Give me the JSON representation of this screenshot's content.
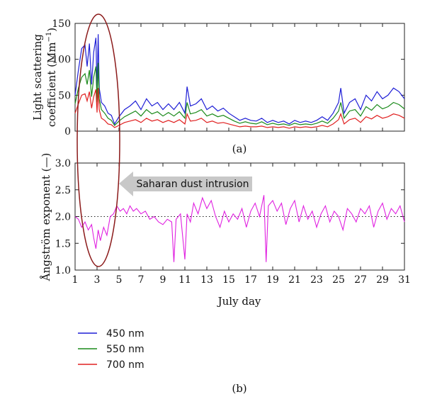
{
  "chart_data": [
    {
      "panel": "(a)",
      "type": "line",
      "ylabel_line1": "Light scattering",
      "ylabel_line2_prefix": "coefficient (Mm",
      "ylabel_line2_sup": "−1",
      "ylabel_line2_suffix": ")",
      "xlim": [
        1,
        31
      ],
      "ylim": [
        0,
        150
      ],
      "yticks": [
        0,
        50,
        100,
        150
      ],
      "grid": false,
      "series": [
        {
          "name": "450 nm",
          "color": "#1f1fd6",
          "x": [
            1,
            1.3,
            1.6,
            1.9,
            2.1,
            2.3,
            2.5,
            2.7,
            2.9,
            3.0,
            3.1,
            3.2,
            3.4,
            3.7,
            4.0,
            4.3,
            4.6,
            5,
            5.5,
            6,
            6.5,
            7,
            7.5,
            8,
            8.5,
            9,
            9.5,
            10,
            10.5,
            11,
            11.2,
            11.5,
            12,
            12.5,
            13,
            13.5,
            14,
            14.5,
            15,
            15.5,
            16,
            16.5,
            17,
            17.5,
            18,
            18.5,
            19,
            19.5,
            20,
            20.5,
            21,
            21.5,
            22,
            22.5,
            23,
            23.5,
            24,
            24.5,
            25,
            25.2,
            25.5,
            26,
            26.5,
            27,
            27.5,
            28,
            28.5,
            29,
            29.5,
            30,
            30.5,
            31
          ],
          "y": [
            50,
            85,
            115,
            120,
            90,
            122,
            65,
            110,
            130,
            55,
            135,
            60,
            40,
            35,
            25,
            22,
            10,
            20,
            30,
            35,
            42,
            30,
            45,
            35,
            40,
            30,
            38,
            30,
            40,
            25,
            62,
            35,
            38,
            45,
            30,
            35,
            28,
            32,
            25,
            20,
            15,
            18,
            15,
            14,
            18,
            12,
            15,
            12,
            14,
            10,
            15,
            12,
            14,
            12,
            15,
            20,
            15,
            25,
            40,
            60,
            25,
            40,
            45,
            30,
            50,
            42,
            55,
            45,
            50,
            60,
            55,
            45
          ]
        },
        {
          "name": "550 nm",
          "color": "#1a8a1a",
          "x": [
            1,
            1.3,
            1.6,
            1.9,
            2.1,
            2.3,
            2.5,
            2.7,
            2.9,
            3.0,
            3.1,
            3.2,
            3.4,
            3.7,
            4.0,
            4.3,
            4.6,
            5,
            5.5,
            6,
            6.5,
            7,
            7.5,
            8,
            8.5,
            9,
            9.5,
            10,
            10.5,
            11,
            11.2,
            11.5,
            12,
            12.5,
            13,
            13.5,
            14,
            14.5,
            15,
            15.5,
            16,
            16.5,
            17,
            17.5,
            18,
            18.5,
            19,
            19.5,
            20,
            20.5,
            21,
            21.5,
            22,
            22.5,
            23,
            23.5,
            24,
            24.5,
            25,
            25.2,
            25.5,
            26,
            26.5,
            27,
            27.5,
            28,
            28.5,
            29,
            29.5,
            30,
            30.5,
            31
          ],
          "y": [
            38,
            60,
            75,
            80,
            65,
            85,
            48,
            75,
            90,
            40,
            95,
            45,
            30,
            25,
            18,
            15,
            8,
            14,
            20,
            24,
            28,
            21,
            30,
            24,
            27,
            21,
            26,
            21,
            27,
            18,
            40,
            24,
            26,
            30,
            21,
            24,
            20,
            22,
            18,
            14,
            11,
            13,
            11,
            10,
            13,
            9,
            11,
            9,
            10,
            8,
            11,
            9,
            10,
            9,
            11,
            14,
            11,
            18,
            28,
            40,
            18,
            28,
            30,
            21,
            34,
            29,
            37,
            31,
            34,
            40,
            37,
            31
          ]
        },
        {
          "name": "700 nm",
          "color": "#e02020",
          "x": [
            1,
            1.3,
            1.6,
            1.9,
            2.1,
            2.3,
            2.5,
            2.7,
            2.9,
            3.0,
            3.1,
            3.2,
            3.4,
            3.7,
            4.0,
            4.3,
            4.6,
            5,
            5.5,
            6,
            6.5,
            7,
            7.5,
            8,
            8.5,
            9,
            9.5,
            10,
            10.5,
            11,
            11.2,
            11.5,
            12,
            12.5,
            13,
            13.5,
            14,
            14.5,
            15,
            15.5,
            16,
            16.5,
            17,
            17.5,
            18,
            18.5,
            19,
            19.5,
            20,
            20.5,
            21,
            21.5,
            22,
            22.5,
            23,
            23.5,
            24,
            24.5,
            25,
            25.2,
            25.5,
            26,
            26.5,
            27,
            27.5,
            28,
            28.5,
            29,
            29.5,
            30,
            30.5,
            31
          ],
          "y": [
            25,
            38,
            50,
            52,
            42,
            55,
            32,
            48,
            58,
            26,
            60,
            30,
            18,
            15,
            10,
            9,
            5,
            8,
            12,
            14,
            16,
            12,
            18,
            14,
            16,
            12,
            15,
            12,
            16,
            10,
            24,
            14,
            15,
            18,
            12,
            14,
            11,
            12,
            10,
            8,
            6,
            7,
            6,
            6,
            7,
            5,
            6,
            5,
            6,
            4,
            6,
            5,
            6,
            5,
            6,
            8,
            6,
            10,
            16,
            24,
            10,
            16,
            18,
            12,
            20,
            17,
            22,
            18,
            20,
            24,
            22,
            18
          ]
        }
      ]
    },
    {
      "panel": "(b)",
      "type": "line",
      "ylabel": "Ångström exponent (—)",
      "xlabel": "July day",
      "xlim": [
        1,
        31
      ],
      "ylim": [
        1.0,
        3.0
      ],
      "xticks": [
        1,
        3,
        5,
        7,
        9,
        11,
        13,
        15,
        17,
        19,
        21,
        23,
        25,
        27,
        29,
        31
      ],
      "yticks": [
        1.0,
        1.5,
        2.0,
        2.5,
        3.0
      ],
      "yticks_labels": [
        "1.0",
        "1.5",
        "2.0",
        "2.5",
        "3.0"
      ],
      "reference_line": 2.0,
      "grid": false,
      "series": [
        {
          "name": "",
          "color": "#e020e0",
          "x": [
            1,
            1.3,
            1.6,
            1.9,
            2.2,
            2.5,
            2.7,
            2.9,
            3.1,
            3.3,
            3.6,
            3.9,
            4.2,
            4.5,
            4.8,
            5.1,
            5.4,
            5.7,
            6,
            6.3,
            6.6,
            7,
            7.4,
            7.8,
            8.2,
            8.6,
            9,
            9.4,
            9.8,
            10.0,
            10.2,
            10.6,
            11,
            11.2,
            11.5,
            11.8,
            12.2,
            12.6,
            13,
            13.4,
            13.8,
            14.2,
            14.6,
            15,
            15.4,
            15.8,
            16.2,
            16.6,
            17,
            17.4,
            17.8,
            18.2,
            18.4,
            18.6,
            19,
            19.4,
            19.8,
            20.2,
            20.6,
            21,
            21.4,
            21.8,
            22.2,
            22.6,
            23,
            23.4,
            23.8,
            24.2,
            24.6,
            25,
            25.4,
            25.8,
            26.2,
            26.6,
            27,
            27.4,
            27.8,
            28.2,
            28.6,
            29,
            29.4,
            29.8,
            30.2,
            30.6,
            31
          ],
          "y": [
            2.0,
            1.95,
            1.8,
            1.9,
            1.75,
            1.85,
            1.6,
            1.4,
            1.75,
            1.55,
            1.8,
            1.65,
            2.0,
            2.05,
            2.2,
            2.1,
            2.15,
            2.05,
            2.2,
            2.1,
            2.15,
            2.05,
            2.1,
            1.95,
            2.0,
            1.9,
            1.85,
            1.95,
            1.9,
            1.15,
            1.95,
            2.05,
            1.2,
            2.05,
            1.9,
            2.25,
            2.05,
            2.35,
            2.15,
            2.3,
            2.0,
            1.8,
            2.1,
            1.9,
            2.05,
            1.95,
            2.15,
            1.8,
            2.1,
            2.25,
            2.0,
            2.4,
            1.15,
            2.2,
            2.3,
            2.1,
            2.25,
            1.85,
            2.15,
            2.3,
            1.9,
            2.2,
            1.95,
            2.1,
            1.8,
            2.05,
            2.2,
            1.9,
            2.1,
            2.0,
            1.75,
            2.15,
            2.05,
            1.9,
            2.15,
            2.05,
            2.2,
            1.8,
            2.1,
            2.25,
            1.95,
            2.15,
            2.05,
            2.2,
            1.9
          ]
        }
      ]
    }
  ],
  "panel_a_label": "(a)",
  "panel_b_label": "(b)",
  "annotation": "Saharan dust intrusion",
  "legend": [
    {
      "label": "450 nm",
      "color": "#1f1fd6"
    },
    {
      "label": "550 nm",
      "color": "#1a8a1a"
    },
    {
      "label": "700 nm",
      "color": "#e02020"
    }
  ],
  "ellipse_color": "#8b1a1a",
  "arrow_color": "#c8c8c8"
}
